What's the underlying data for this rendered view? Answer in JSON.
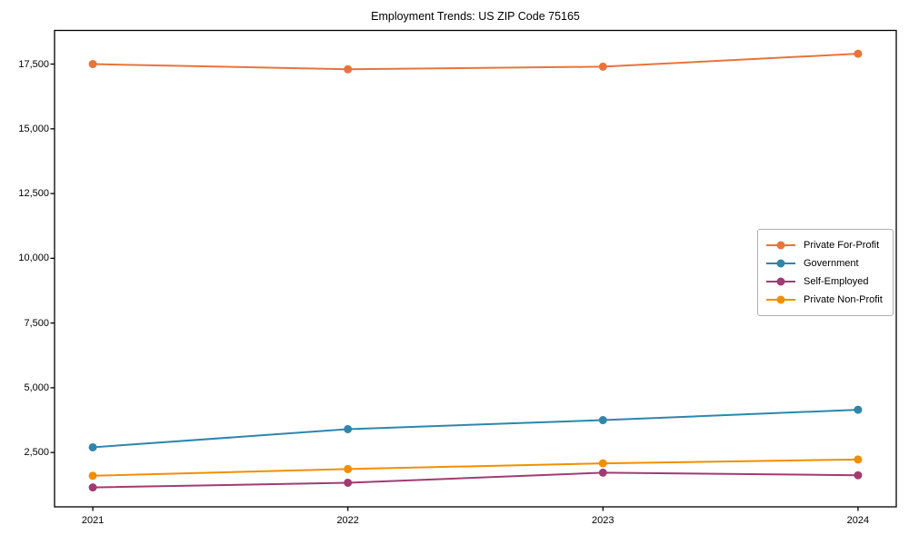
{
  "title": "Employment Trends: US ZIP Code 75165",
  "chart_data": {
    "type": "line",
    "title": "Employment Trends: US ZIP Code 75165",
    "xlabel": "",
    "ylabel": "",
    "x": [
      2021,
      2022,
      2023,
      2024
    ],
    "x_tick_labels": [
      "2021",
      "2022",
      "2023",
      "2024"
    ],
    "y_ticks": [
      2500,
      5000,
      7500,
      10000,
      12500,
      15000,
      17500
    ],
    "y_tick_labels": [
      "2,500",
      "5,000",
      "7,500",
      "10,000",
      "12,500",
      "15,000",
      "17,500"
    ],
    "xlim": [
      2020.85,
      2024.15
    ],
    "ylim": [
      400,
      18800
    ],
    "grid": false,
    "marker": "circle",
    "legend_position": "center-right",
    "series": [
      {
        "name": "Private For-Profit",
        "color": "#E8743B",
        "values": [
          17500,
          17300,
          17400,
          17900
        ]
      },
      {
        "name": "Government",
        "color": "#2E86AB",
        "values": [
          2700,
          3400,
          3750,
          4150
        ]
      },
      {
        "name": "Self-Employed",
        "color": "#A23B72",
        "values": [
          1150,
          1330,
          1720,
          1620
        ]
      },
      {
        "name": "Private Non-Profit",
        "color": "#F18F01",
        "values": [
          1600,
          1860,
          2080,
          2230
        ]
      }
    ],
    "axis_color": "#000000",
    "background_color": "#ffffff"
  }
}
